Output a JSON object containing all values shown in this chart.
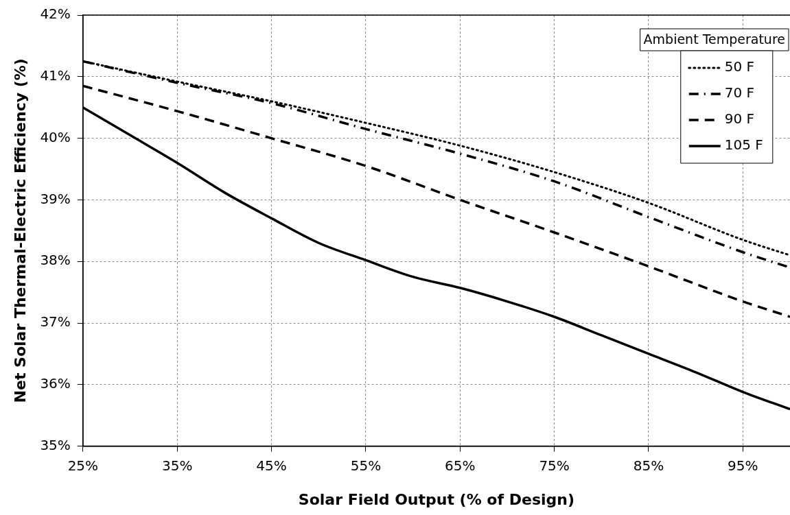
{
  "chart_data": {
    "type": "line",
    "xlabel": "Solar Field Output (% of Design)",
    "ylabel": "Net Solar Thermal-Electric Efficiency (%)",
    "legend_title": "Ambient Temperature",
    "legend": "top right",
    "grid": true,
    "marker": "none",
    "x": [
      25,
      35,
      45,
      55,
      65,
      75,
      85,
      95,
      100
    ],
    "xlim": [
      25,
      100
    ],
    "xticks": [
      {
        "value": 25,
        "label": "25%"
      },
      {
        "value": 35,
        "label": "35%"
      },
      {
        "value": 45,
        "label": "45%"
      },
      {
        "value": 55,
        "label": "55%"
      },
      {
        "value": 65,
        "label": "65%"
      },
      {
        "value": 75,
        "label": "75%"
      },
      {
        "value": 85,
        "label": "85%"
      },
      {
        "value": 95,
        "label": "95%"
      }
    ],
    "ylim": [
      35,
      42
    ],
    "yticks": [
      {
        "value": 35,
        "label": "35%"
      },
      {
        "value": 36,
        "label": "36%"
      },
      {
        "value": 37,
        "label": "37%"
      },
      {
        "value": 38,
        "label": "38%"
      },
      {
        "value": 39,
        "label": "39%"
      },
      {
        "value": 40,
        "label": "40%"
      },
      {
        "value": 41,
        "label": "41%"
      },
      {
        "value": 42,
        "label": "42%"
      }
    ],
    "series": [
      {
        "name": "50 F",
        "color": "#000000",
        "line_style": "dotted",
        "values": [
          41.25,
          40.92,
          40.6,
          40.25,
          39.88,
          39.45,
          38.95,
          38.35,
          38.1
        ]
      },
      {
        "name": "70 F",
        "color": "#000000",
        "line_style": "dashdot",
        "values": [
          41.25,
          40.9,
          40.57,
          40.15,
          39.75,
          39.3,
          38.72,
          38.15,
          37.9
        ]
      },
      {
        "name": "90 F",
        "color": "#000000",
        "line_style": "dashed",
        "values": [
          40.85,
          40.44,
          40.0,
          39.55,
          39.0,
          38.47,
          37.92,
          37.35,
          37.1
        ]
      },
      {
        "name": "105 F",
        "color": "#000000",
        "line_style": "solid",
        "x": [
          25,
          30,
          35,
          40,
          45,
          50,
          55,
          60,
          65,
          70,
          75,
          80,
          85,
          90,
          95,
          100
        ],
        "values": [
          40.5,
          40.05,
          39.6,
          39.12,
          38.7,
          38.3,
          38.02,
          37.75,
          37.57,
          37.35,
          37.1,
          36.8,
          36.5,
          36.2,
          35.88,
          35.6
        ]
      }
    ]
  }
}
